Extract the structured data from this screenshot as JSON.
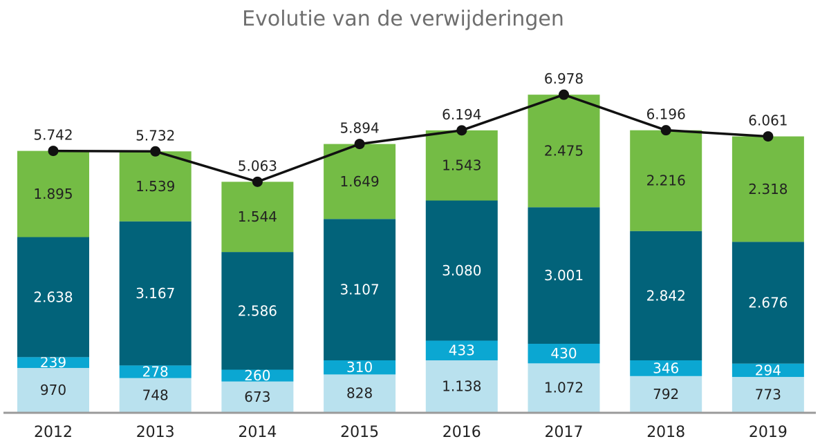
{
  "chart_data": {
    "type": "bar",
    "stacked": true,
    "title": "Evolutie van de verwijderingen",
    "categories": [
      "2012",
      "2013",
      "2014",
      "2015",
      "2016",
      "2017",
      "2018",
      "2019"
    ],
    "series": [
      {
        "values": [
          970,
          748,
          673,
          828,
          1138,
          1072,
          792,
          773
        ],
        "labels": [
          "970",
          "748",
          "673",
          "828",
          "1.138",
          "1.072",
          "792",
          "773"
        ],
        "color": "#b9e1ee",
        "text_color": "#222222"
      },
      {
        "values": [
          239,
          278,
          260,
          310,
          433,
          430,
          346,
          294
        ],
        "labels": [
          "239",
          "278",
          "260",
          "310",
          "433",
          "430",
          "346",
          "294"
        ],
        "color": "#0ba7d2",
        "text_color": "#ffffff"
      },
      {
        "values": [
          2638,
          3167,
          2586,
          3107,
          3080,
          3001,
          2842,
          2676
        ],
        "labels": [
          "2.638",
          "3.167",
          "2.586",
          "3.107",
          "3.080",
          "3.001",
          "2.842",
          "2.676"
        ],
        "color": "#02637a",
        "text_color": "#ffffff"
      },
      {
        "values": [
          1895,
          1539,
          1544,
          1649,
          1543,
          2475,
          2216,
          2318
        ],
        "labels": [
          "1.895",
          "1.539",
          "1.544",
          "1.649",
          "1.543",
          "2.475",
          "2.216",
          "2.318"
        ],
        "color": "#74bc45",
        "text_color": "#222222"
      }
    ],
    "total_line": {
      "values": [
        5742,
        5732,
        5063,
        5894,
        6194,
        6978,
        6196,
        6061
      ],
      "labels": [
        "5.742",
        "5.732",
        "5.063",
        "5.894",
        "6.194",
        "6.978",
        "6.196",
        "6.061"
      ],
      "color": "#111111"
    },
    "ylim": [
      0,
      7500
    ],
    "grid": false,
    "legend": "none",
    "xlabel": "",
    "ylabel": ""
  }
}
